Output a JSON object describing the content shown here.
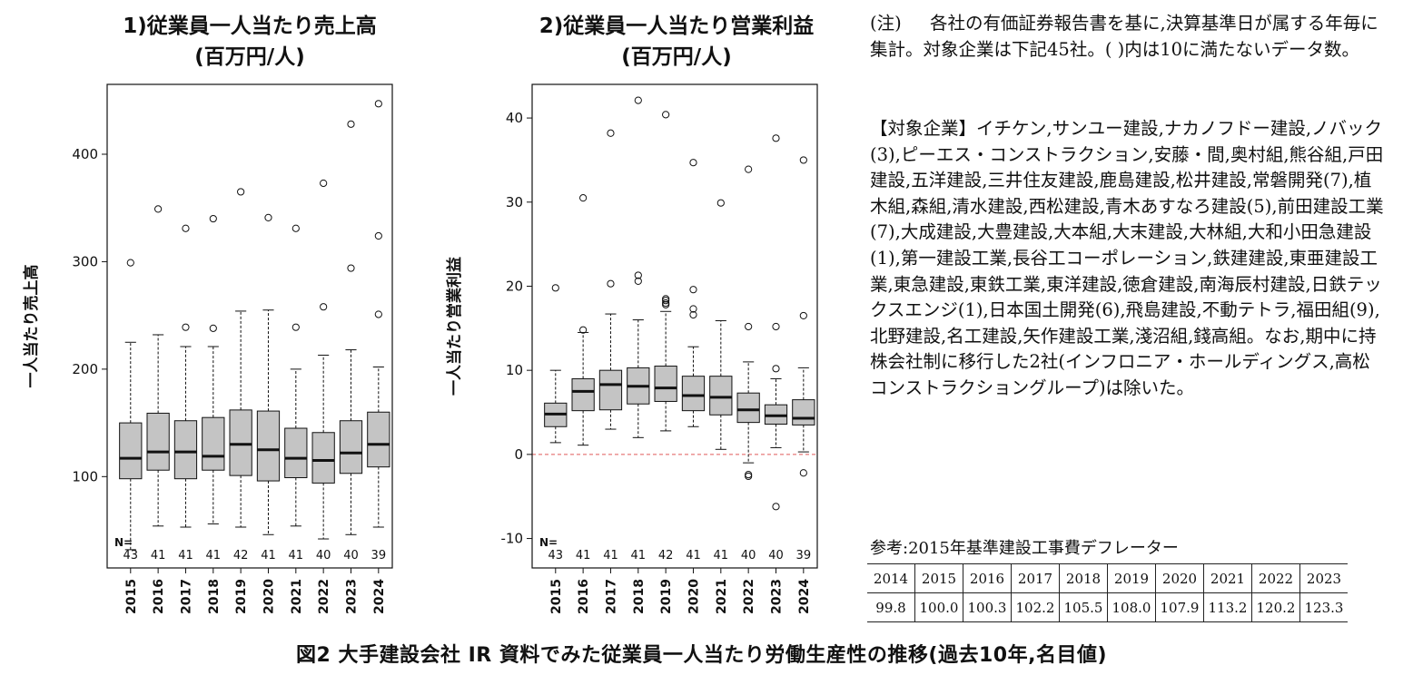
{
  "chart1": {
    "title": "1)従業員一人当たり売上高\n(百万円/人)",
    "ylabel": "一人当たり売上高"
  },
  "chart2": {
    "title": "2)従業員一人当たり営業利益\n(百万円/人)",
    "ylabel": "一人当たり営業利益"
  },
  "chart_data": [
    {
      "type": "boxplot",
      "ylabel": "一人当たり売上高",
      "categories": [
        "2015",
        "2016",
        "2017",
        "2018",
        "2019",
        "2020",
        "2021",
        "2022",
        "2023",
        "2024"
      ],
      "yticks": [
        100,
        200,
        300,
        400
      ],
      "ylim": [
        15,
        465
      ],
      "n_label": "N=",
      "n": [
        "43",
        "41",
        "41",
        "41",
        "42",
        "41",
        "41",
        "40",
        "40",
        "39"
      ],
      "boxes": [
        {
          "whisker_low": 32,
          "q1": 98,
          "median": 117,
          "q3": 150,
          "whisker_high": 225,
          "outliers": [
            299
          ]
        },
        {
          "whisker_low": 54,
          "q1": 106,
          "median": 123,
          "q3": 159,
          "whisker_high": 232,
          "outliers": [
            349
          ]
        },
        {
          "whisker_low": 53,
          "q1": 98,
          "median": 123,
          "q3": 152,
          "whisker_high": 221,
          "outliers": [
            239,
            331
          ]
        },
        {
          "whisker_low": 56,
          "q1": 106,
          "median": 119,
          "q3": 155,
          "whisker_high": 221,
          "outliers": [
            238,
            340
          ]
        },
        {
          "whisker_low": 53,
          "q1": 101,
          "median": 130,
          "q3": 162,
          "whisker_high": 254,
          "outliers": [
            365
          ]
        },
        {
          "whisker_low": 46,
          "q1": 96,
          "median": 125,
          "q3": 161,
          "whisker_high": 255,
          "outliers": [
            341
          ]
        },
        {
          "whisker_low": 54,
          "q1": 99,
          "median": 117,
          "q3": 145,
          "whisker_high": 200,
          "outliers": [
            239,
            331
          ]
        },
        {
          "whisker_low": 42,
          "q1": 94,
          "median": 115,
          "q3": 141,
          "whisker_high": 213,
          "outliers": [
            258,
            373
          ]
        },
        {
          "whisker_low": 46,
          "q1": 103,
          "median": 122,
          "q3": 152,
          "whisker_high": 218,
          "outliers": [
            294,
            428
          ]
        },
        {
          "whisker_low": 53,
          "q1": 109,
          "median": 130,
          "q3": 160,
          "whisker_high": 202,
          "outliers": [
            251,
            324,
            447
          ]
        }
      ]
    },
    {
      "type": "boxplot",
      "ylabel": "一人当たり営業利益",
      "categories": [
        "2015",
        "2016",
        "2017",
        "2018",
        "2019",
        "2020",
        "2021",
        "2022",
        "2023",
        "2024"
      ],
      "yticks": [
        -10,
        0,
        10,
        20,
        30,
        40
      ],
      "ylim": [
        -13.5,
        44
      ],
      "zero_line": 0,
      "n_label": "N=",
      "n": [
        "43",
        "41",
        "41",
        "41",
        "42",
        "41",
        "41",
        "40",
        "40",
        "39"
      ],
      "boxes": [
        {
          "whisker_low": 1.4,
          "q1": 3.3,
          "median": 4.8,
          "q3": 6.1,
          "whisker_high": 10.0,
          "outliers": [
            19.8
          ]
        },
        {
          "whisker_low": 1.1,
          "q1": 5.2,
          "median": 7.5,
          "q3": 9.0,
          "whisker_high": 14.5,
          "outliers": [
            14.8,
            30.5
          ]
        },
        {
          "whisker_low": 3.0,
          "q1": 5.3,
          "median": 8.3,
          "q3": 10.0,
          "whisker_high": 16.7,
          "outliers": [
            20.3,
            38.2
          ]
        },
        {
          "whisker_low": 2.0,
          "q1": 6.0,
          "median": 8.1,
          "q3": 10.3,
          "whisker_high": 16.0,
          "outliers": [
            20.6,
            21.3,
            42.1
          ]
        },
        {
          "whisker_low": 2.8,
          "q1": 6.3,
          "median": 7.9,
          "q3": 10.5,
          "whisker_high": 17.0,
          "outliers": [
            17.8,
            18.0,
            18.3,
            18.5,
            40.4
          ]
        },
        {
          "whisker_low": 3.3,
          "q1": 5.2,
          "median": 7.0,
          "q3": 9.3,
          "whisker_high": 12.8,
          "outliers": [
            16.6,
            17.3,
            19.6,
            34.7
          ]
        },
        {
          "whisker_low": 0.6,
          "q1": 4.7,
          "median": 6.8,
          "q3": 9.3,
          "whisker_high": 15.9,
          "outliers": [
            29.9
          ]
        },
        {
          "whisker_low": -1.0,
          "q1": 3.8,
          "median": 5.3,
          "q3": 7.3,
          "whisker_high": 11.0,
          "outliers": [
            -2.4,
            -2.6,
            15.2,
            33.9
          ]
        },
        {
          "whisker_low": 0.8,
          "q1": 3.6,
          "median": 4.6,
          "q3": 5.9,
          "whisker_high": 9.0,
          "outliers": [
            10.2,
            15.2,
            37.6,
            -6.2
          ]
        },
        {
          "whisker_low": 0.3,
          "q1": 3.5,
          "median": 4.3,
          "q3": 6.5,
          "whisker_high": 10.3,
          "outliers": [
            -2.2,
            16.5,
            35.0
          ]
        }
      ]
    }
  ],
  "note": {
    "head": "(注)",
    "body": "各社の有価証券報告書を基に,決算基準日が属する年毎に集計。対象企業は下記45社。( )内は10に満たないデータ数。"
  },
  "targets": {
    "head": "【対象企業】",
    "body": "イチケン,サンユー建設,ナカノフドー建設,ノバック(3),ピーエス・コンストラクション,安藤・間,奥村組,熊谷組,戸田建設,五洋建設,三井住友建設,鹿島建設,松井建設,常磐開発(7),植木組,森組,清水建設,西松建設,青木あすなろ建設(5),前田建設工業(7),大成建設,大豊建設,大本組,大末建設,大林組,大和小田急建設(1),第一建設工業,長谷工コーポレーション,鉄建建設,東亜建設工業,東急建設,東鉄工業,東洋建設,徳倉建設,南海辰村建設,日鉄テックスエンジ(1),日本国土開発(6),飛島建設,不動テトラ,福田組(9),北野建設,名工建設,矢作建設工業,淺沼組,錢高組。なお,期中に持株会社制に移行した2社(インフロニア・ホールディングス,高松コンストラクショングループ)は除いた。"
  },
  "reference": {
    "label": "参考:2015年基準建設工事費デフレーター",
    "years": [
      "2014",
      "2015",
      "2016",
      "2017",
      "2018",
      "2019",
      "2020",
      "2021",
      "2022",
      "2023"
    ],
    "values": [
      "99.8",
      "100.0",
      "100.3",
      "102.2",
      "105.5",
      "108.0",
      "107.9",
      "113.2",
      "120.2",
      "123.3"
    ]
  },
  "caption": "図2 大手建設会社 IR 資料でみた従業員一人当たり労働生産性の推移(過去10年,名目値)",
  "colors": {
    "box_fill": "#c4c4c4",
    "zero_line": "#e05a5a",
    "ink": "#111111"
  }
}
